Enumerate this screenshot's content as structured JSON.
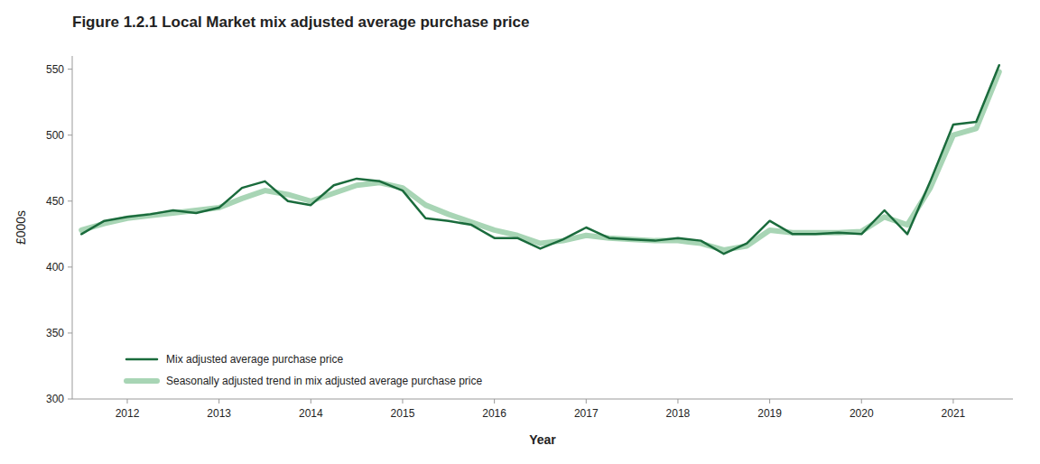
{
  "chart_data": {
    "type": "line",
    "title": "Figure 1.2.1 Local Market mix adjusted average purchase price",
    "xlabel": "Year",
    "ylabel": "£000s",
    "x": [
      2011.5,
      2011.75,
      2012.0,
      2012.25,
      2012.5,
      2012.75,
      2013.0,
      2013.25,
      2013.5,
      2013.75,
      2014.0,
      2014.25,
      2014.5,
      2014.75,
      2015.0,
      2015.25,
      2015.5,
      2015.75,
      2016.0,
      2016.25,
      2016.5,
      2016.75,
      2017.0,
      2017.25,
      2017.5,
      2017.75,
      2018.0,
      2018.25,
      2018.5,
      2018.75,
      2019.0,
      2019.25,
      2019.5,
      2019.75,
      2020.0,
      2020.25,
      2020.5,
      2020.75,
      2021.0,
      2021.25,
      2021.5
    ],
    "series": [
      {
        "name": "Mix adjusted average purchase price",
        "color": "#1a6b3c",
        "values": [
          425,
          435,
          438,
          440,
          443,
          441,
          445,
          460,
          465,
          450,
          447,
          462,
          467,
          465,
          458,
          437,
          435,
          432,
          422,
          422,
          414,
          421,
          430,
          422,
          421,
          420,
          422,
          420,
          410,
          418,
          435,
          425,
          425,
          426,
          425,
          443,
          425,
          465,
          508,
          510,
          553
        ]
      },
      {
        "name": "Seasonally adjusted trend in mix adjusted average purchase price",
        "color": "#a8d5b5",
        "values": [
          428,
          433,
          437,
          439,
          441,
          443,
          445,
          452,
          458,
          455,
          450,
          456,
          462,
          464,
          460,
          447,
          440,
          434,
          428,
          424,
          418,
          420,
          424,
          422,
          421,
          420,
          420,
          418,
          413,
          416,
          428,
          426,
          426,
          426,
          427,
          438,
          432,
          460,
          500,
          505,
          548
        ]
      }
    ],
    "xlim": [
      2011.4,
      2021.65
    ],
    "xticks": [
      2012,
      2013,
      2014,
      2015,
      2016,
      2017,
      2018,
      2019,
      2020,
      2021
    ],
    "ylim": [
      300,
      560
    ],
    "yticks": [
      300,
      350,
      400,
      450,
      500,
      550
    ],
    "grid": false,
    "legend": "lower left"
  }
}
